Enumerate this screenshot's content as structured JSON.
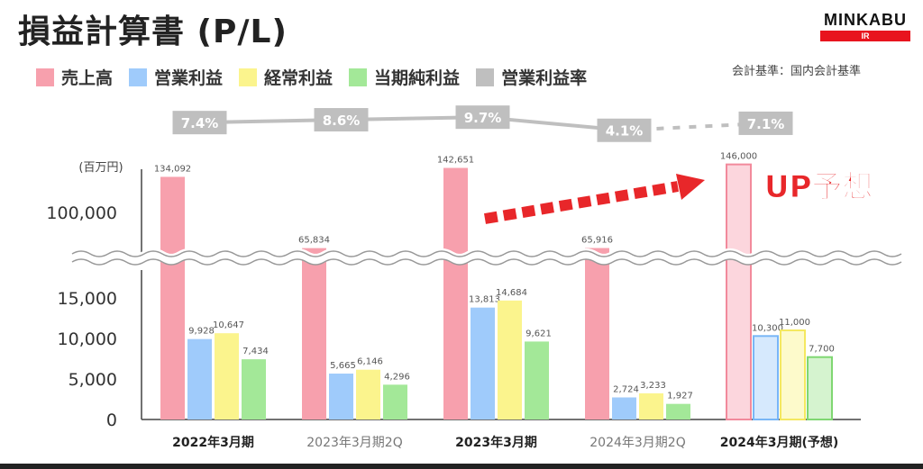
{
  "title": "損益計算書 (P/L)",
  "logo": {
    "name": "MINKABU",
    "sub": "IR"
  },
  "note": "会計基準：国内会計基準",
  "colors": {
    "revenue": "#f7a0ad",
    "operating": "#9fcbfb",
    "ordinary": "#fbf48d",
    "net": "#a3e898",
    "margin": "#bfbfbf",
    "arrow": "#e8272a"
  },
  "chart_data": {
    "type": "bar",
    "unit_label": "(百万円)",
    "categories": [
      "2022年3月期",
      "2023年3月期2Q",
      "2023年3月期",
      "2024年3月期2Q",
      "2024年3月期(予想)"
    ],
    "series": [
      {
        "name": "売上高",
        "values": [
          134092,
          65834,
          142651,
          65916,
          146000
        ],
        "labels": [
          "134,092",
          "65,834",
          "142,651",
          "65,916",
          "146,000"
        ]
      },
      {
        "name": "営業利益",
        "values": [
          9928,
          5665,
          13813,
          2724,
          10300
        ],
        "labels": [
          "9,928",
          "5,665",
          "13,813",
          "2,724",
          "10,300"
        ]
      },
      {
        "name": "経常利益",
        "values": [
          10647,
          6146,
          14684,
          3233,
          11000
        ],
        "labels": [
          "10,647",
          "6,146",
          "14,684",
          "3,233",
          "11,000"
        ]
      },
      {
        "name": "当期純利益",
        "values": [
          7434,
          4296,
          9621,
          1927,
          7700
        ],
        "labels": [
          "7,434",
          "4,296",
          "9,621",
          "1,927",
          "7,700"
        ]
      }
    ],
    "margin_series": {
      "name": "営業利益率",
      "values": [
        7.4,
        8.6,
        9.7,
        4.1,
        7.1
      ],
      "labels": [
        "7.4%",
        "8.6%",
        "9.7%",
        "4.1%",
        "7.1%"
      ]
    },
    "y_ticks_lower": [
      "0",
      "5,000",
      "10,000",
      "15,000"
    ],
    "y_ticks_upper": [
      "100,000"
    ],
    "axis_break": true,
    "forecast_index": 4,
    "annotation": "UP予想"
  }
}
